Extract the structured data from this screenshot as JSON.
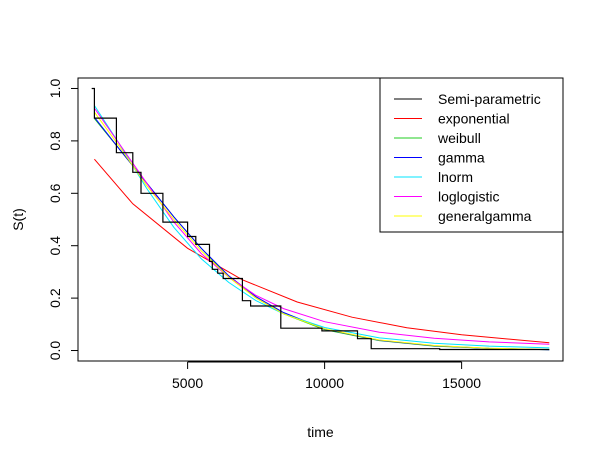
{
  "chart_data": {
    "type": "line",
    "title": "",
    "xlabel": "time",
    "ylabel": "S(t)",
    "xlim": [
      1000,
      18700
    ],
    "ylim": [
      -0.04,
      1.04
    ],
    "xticks": [
      5000,
      10000,
      15000
    ],
    "xtick_labels": [
      "5000",
      "10000",
      "15000"
    ],
    "yticks": [
      0.0,
      0.2,
      0.4,
      0.6,
      0.8,
      1.0
    ],
    "ytick_labels": [
      "0.0",
      "0.2",
      "0.4",
      "0.6",
      "0.8",
      "1.0"
    ],
    "grid": false,
    "legend_position": "top-right",
    "km_step": {
      "name": "Semi-parametric",
      "color": "#000000",
      "x": [
        1500,
        1600,
        2400,
        3000,
        3300,
        4100,
        5000,
        5300,
        5800,
        5900,
        6100,
        6300,
        7000,
        7300,
        8400,
        9900,
        11200,
        11700,
        14200,
        18200
      ],
      "y": [
        1.0,
        0.887,
        0.755,
        0.68,
        0.6,
        0.49,
        0.435,
        0.405,
        0.34,
        0.31,
        0.295,
        0.275,
        0.19,
        0.17,
        0.085,
        0.075,
        0.045,
        0.007,
        0.004,
        0.004
      ]
    },
    "series": [
      {
        "name": "exponential",
        "color": "#ff0000",
        "x": [
          1600,
          3000,
          5000,
          7000,
          9000,
          11000,
          13000,
          15000,
          18200
        ],
        "y": [
          0.73,
          0.56,
          0.39,
          0.27,
          0.185,
          0.127,
          0.087,
          0.06,
          0.03
        ]
      },
      {
        "name": "weibull",
        "color": "#22cc22",
        "x": [
          1600,
          2500,
          3500,
          4500,
          5500,
          6500,
          7500,
          8500,
          10000,
          12000,
          14000,
          16000,
          18200
        ],
        "y": [
          0.885,
          0.77,
          0.64,
          0.51,
          0.39,
          0.28,
          0.2,
          0.14,
          0.08,
          0.038,
          0.017,
          0.008,
          0.003
        ]
      },
      {
        "name": "gamma",
        "color": "#0000ff",
        "x": [
          1600,
          2500,
          3500,
          4500,
          5500,
          6500,
          7500,
          8500,
          10000,
          12000,
          14000,
          16000,
          18200
        ],
        "y": [
          0.89,
          0.77,
          0.64,
          0.51,
          0.39,
          0.285,
          0.205,
          0.145,
          0.082,
          0.039,
          0.018,
          0.008,
          0.003
        ]
      },
      {
        "name": "lnorm",
        "color": "#00e5ff",
        "x": [
          1600,
          2500,
          3500,
          4500,
          5500,
          6500,
          7500,
          8500,
          10000,
          12000,
          14000,
          16000,
          18200
        ],
        "y": [
          0.935,
          0.79,
          0.62,
          0.47,
          0.35,
          0.26,
          0.19,
          0.14,
          0.088,
          0.048,
          0.028,
          0.017,
          0.01
        ]
      },
      {
        "name": "loglogistic",
        "color": "#ff00ff",
        "x": [
          1600,
          2500,
          3500,
          4500,
          5500,
          6500,
          7500,
          8500,
          10000,
          12000,
          14000,
          16000,
          18200
        ],
        "y": [
          0.925,
          0.79,
          0.64,
          0.49,
          0.37,
          0.28,
          0.21,
          0.16,
          0.11,
          0.07,
          0.047,
          0.033,
          0.024
        ]
      },
      {
        "name": "generalgamma",
        "color": "#ffff00",
        "x": [
          1600,
          2500,
          3500,
          4500,
          5500,
          6500,
          7500,
          8500,
          10000,
          12000,
          14000,
          16000,
          18200
        ],
        "y": [
          0.91,
          0.78,
          0.63,
          0.5,
          0.38,
          0.28,
          0.2,
          0.14,
          0.083,
          0.04,
          0.019,
          0.009,
          0.004
        ]
      }
    ]
  }
}
